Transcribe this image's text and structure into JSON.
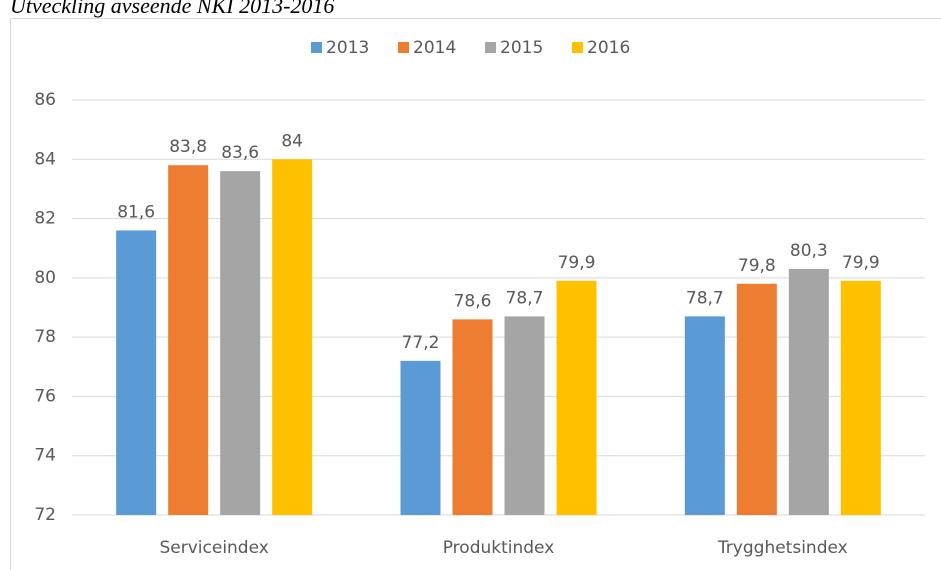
{
  "chart_data": {
    "type": "bar",
    "title": "Utveckling avseende NKI 2013-2016",
    "categories": [
      "Serviceindex",
      "Produktindex",
      "Trygghetsindex"
    ],
    "series": [
      {
        "name": "2013",
        "color": "#5b9bd5",
        "values": [
          81.6,
          77.2,
          78.7
        ],
        "value_labels": [
          "81,6",
          "77,2",
          "78,7"
        ]
      },
      {
        "name": "2014",
        "color": "#ed7d31",
        "values": [
          83.8,
          78.6,
          79.8
        ],
        "value_labels": [
          "83,8",
          "78,6",
          "79,8"
        ]
      },
      {
        "name": "2015",
        "color": "#a5a5a5",
        "values": [
          83.6,
          78.7,
          80.3
        ],
        "value_labels": [
          "83,6",
          "78,7",
          "80,3"
        ]
      },
      {
        "name": "2016",
        "color": "#ffc000",
        "values": [
          84,
          79.9,
          79.9
        ],
        "value_labels": [
          "84",
          "79,9",
          "79,9"
        ]
      }
    ],
    "ylim": [
      72,
      86
    ],
    "yticks": [
      72,
      74,
      76,
      78,
      80,
      82,
      84,
      86
    ],
    "grid": true,
    "legend": "top"
  }
}
